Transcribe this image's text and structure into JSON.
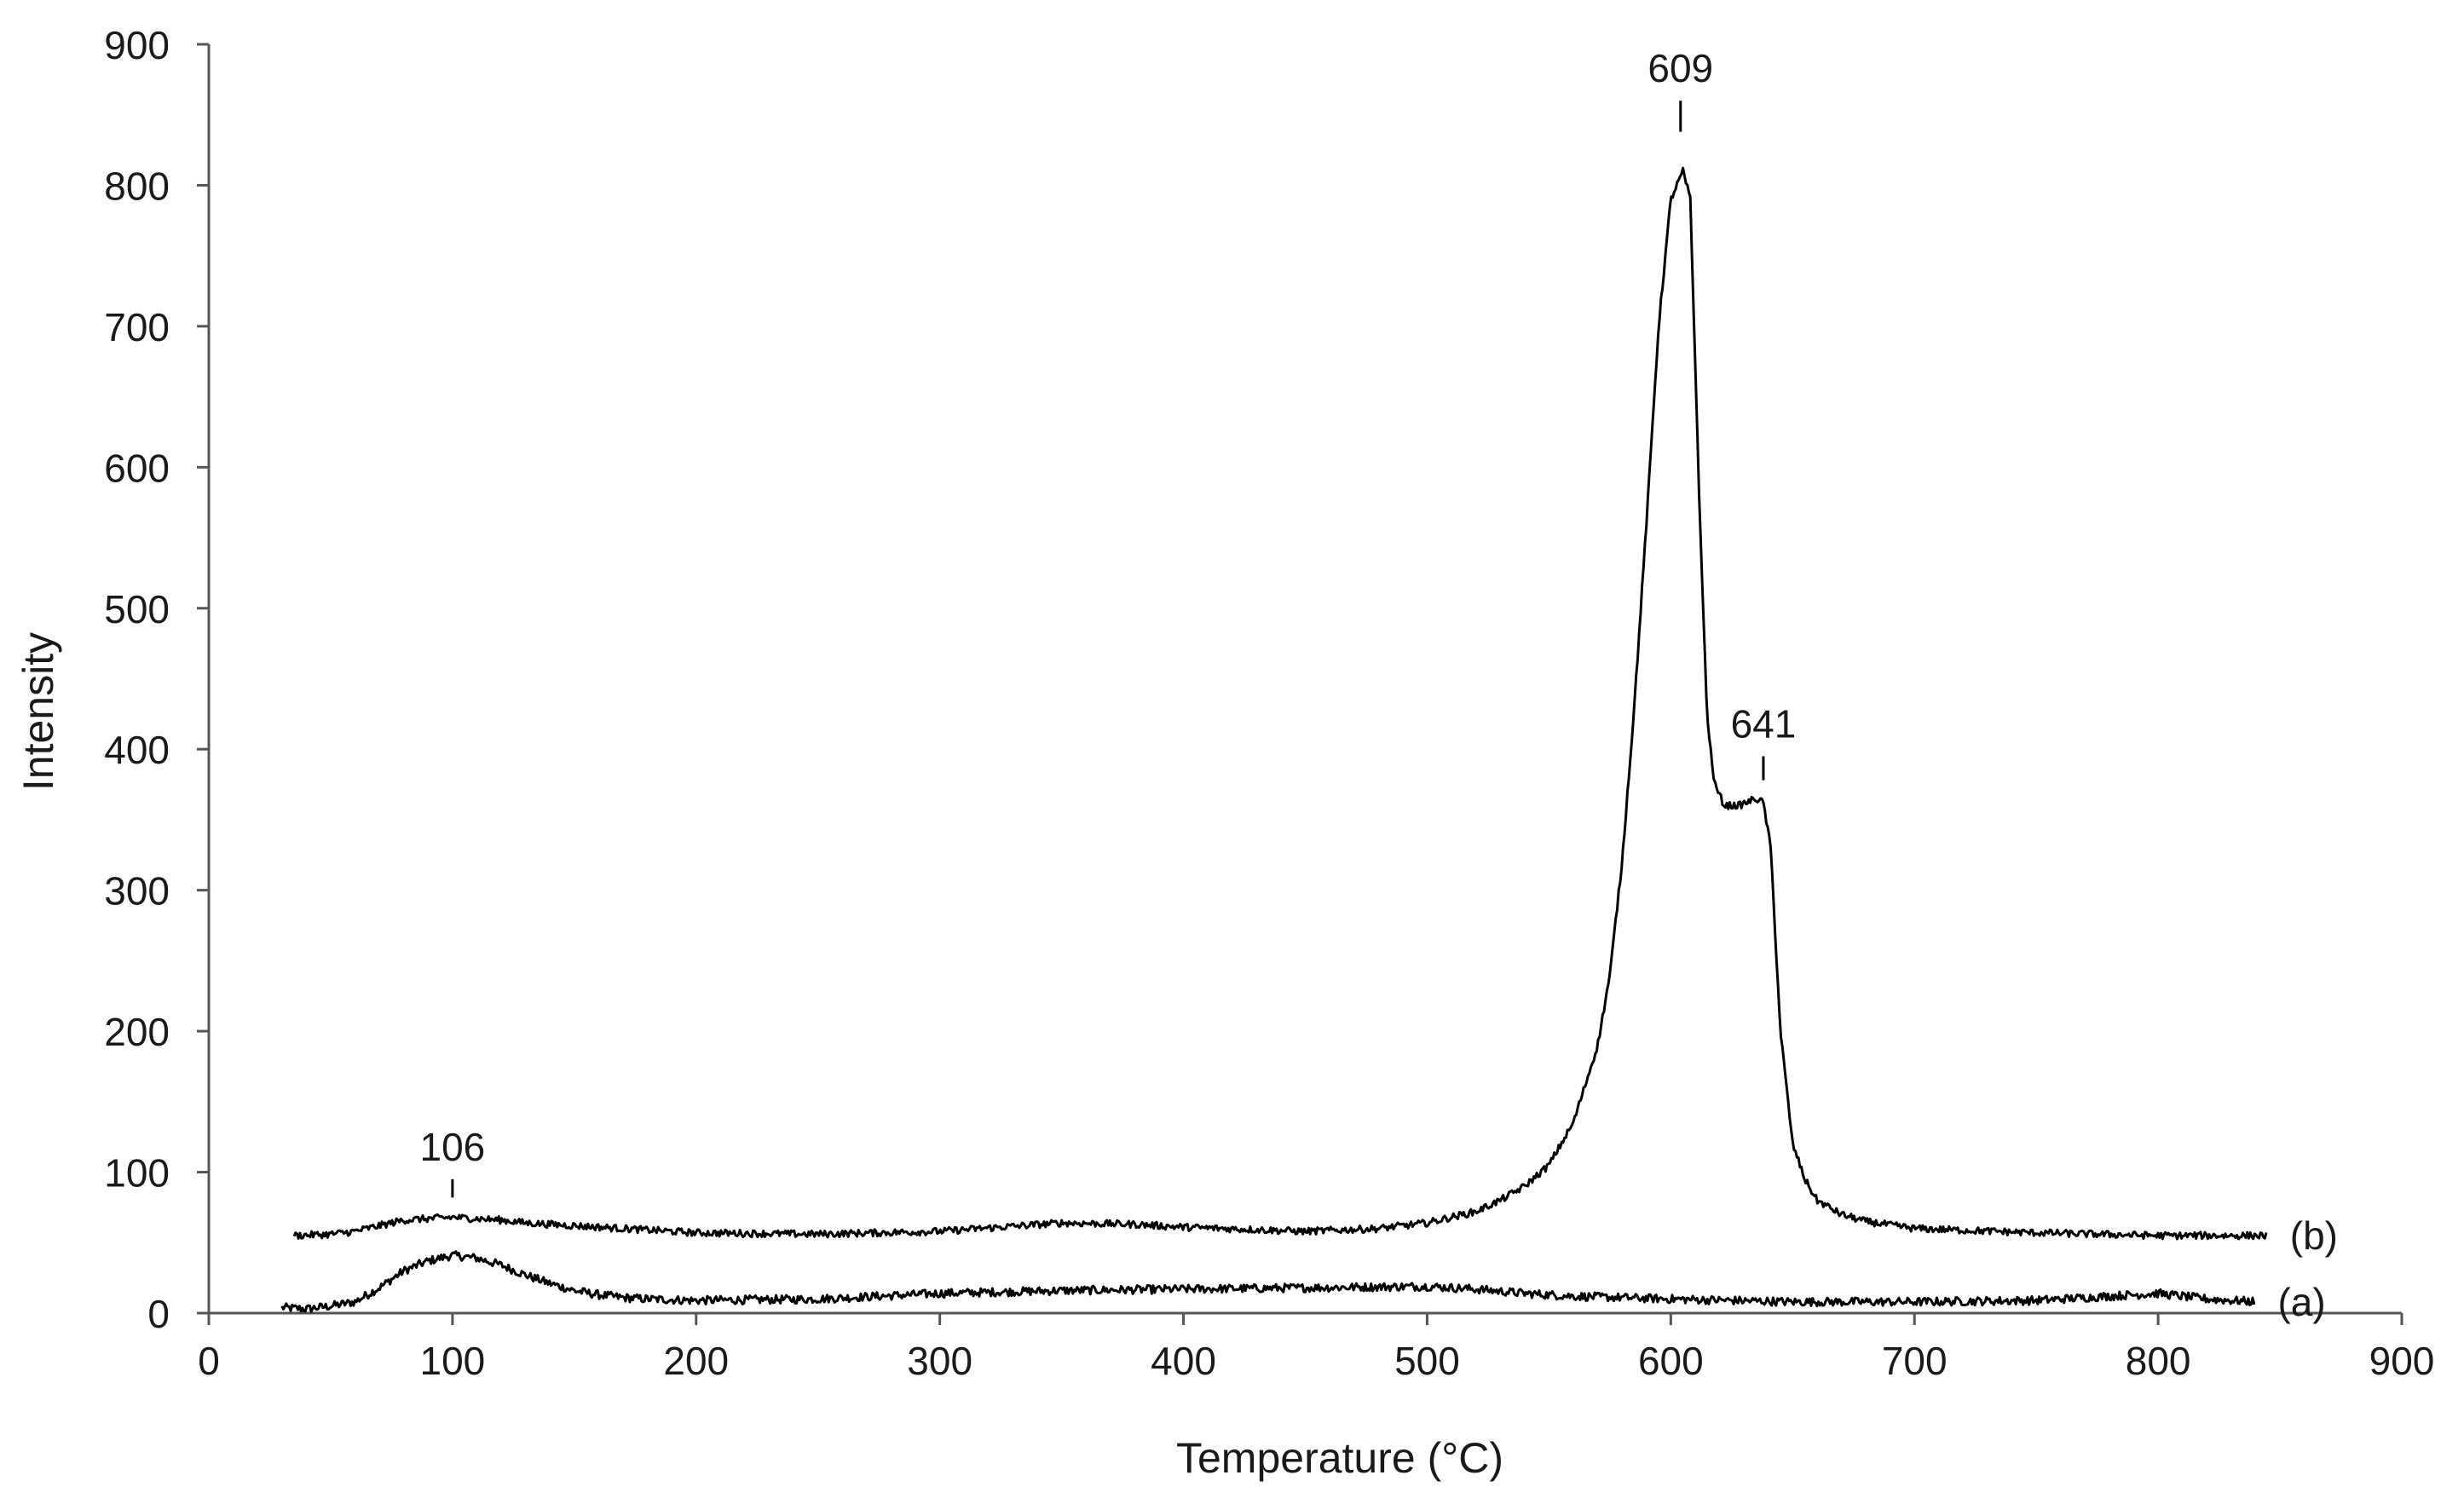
{
  "chart_data": {
    "type": "line",
    "title": "",
    "xlabel": "Temperature (°C)",
    "ylabel": "Intensity",
    "xlim": [
      0,
      900
    ],
    "ylim": [
      0,
      900
    ],
    "x_ticks": [
      0,
      100,
      200,
      300,
      400,
      500,
      600,
      700,
      800,
      900
    ],
    "y_ticks": [
      0,
      100,
      200,
      300,
      400,
      500,
      600,
      700,
      800,
      900
    ],
    "grid": false,
    "legend": "none",
    "series_color": "#000000",
    "series": [
      {
        "name": "(a)",
        "x": [
          30,
          40,
          50,
          60,
          70,
          80,
          90,
          100,
          110,
          120,
          130,
          140,
          150,
          160,
          170,
          180,
          200,
          250,
          300,
          350,
          400,
          450,
          500,
          520,
          540,
          560,
          600,
          650,
          700,
          750,
          780,
          800,
          820,
          840
        ],
        "y": [
          4,
          3,
          5,
          8,
          18,
          30,
          37,
          41,
          39,
          34,
          27,
          21,
          16,
          13,
          11,
          10,
          9,
          10,
          14,
          16,
          17,
          18,
          19,
          17,
          14,
          12,
          10,
          8,
          8,
          9,
          12,
          14,
          10,
          8
        ],
        "noise": 3
      },
      {
        "name": "(b)",
        "x": [
          35,
          50,
          60,
          70,
          80,
          90,
          100,
          110,
          120,
          130,
          140,
          150,
          170,
          200,
          250,
          300,
          350,
          380,
          400,
          450,
          480,
          500,
          520,
          530,
          540,
          550,
          560,
          570,
          575,
          580,
          585,
          590,
          595,
          600,
          605,
          608,
          612,
          615,
          618,
          622,
          628,
          635,
          638,
          641,
          645,
          650,
          655,
          660,
          670,
          680,
          700,
          750,
          800,
          845
        ],
        "y": [
          55,
          56,
          58,
          62,
          66,
          67,
          68,
          67,
          66,
          64,
          63,
          62,
          60,
          57,
          56,
          58,
          64,
          63,
          61,
          58,
          60,
          64,
          72,
          80,
          90,
          105,
          135,
          190,
          240,
          320,
          430,
          560,
          700,
          790,
          810,
          790,
          560,
          420,
          375,
          360,
          360,
          365,
          362,
          330,
          200,
          120,
          95,
          80,
          70,
          65,
          60,
          57,
          55,
          55
        ],
        "noise": 2.5
      }
    ],
    "annotations": [
      {
        "label": "106",
        "x": 100,
        "y_tick_top": 82,
        "y_tick_bottom": 95
      },
      {
        "label": "609",
        "x": 604,
        "y_tick_top": 838,
        "y_tick_bottom": 860
      },
      {
        "label": "641",
        "x": 638,
        "y_tick_top": 378,
        "y_tick_bottom": 395
      }
    ]
  }
}
